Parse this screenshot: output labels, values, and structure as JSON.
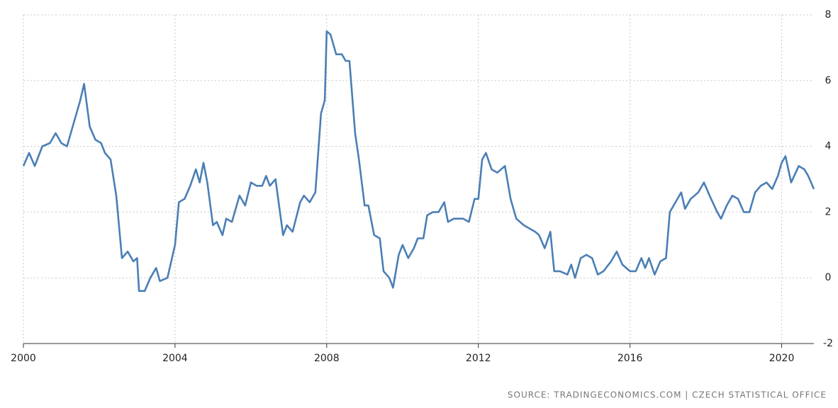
{
  "chart_data": {
    "type": "line",
    "source": "SOURCE: TRADINGECONOMICS.COM | CZECH STATISTICAL OFFICE",
    "x": [
      2000.0,
      2000.15,
      2000.3,
      2000.5,
      2000.7,
      2000.85,
      2001.0,
      2001.15,
      2001.3,
      2001.5,
      2001.6,
      2001.75,
      2001.9,
      2002.05,
      2002.15,
      2002.3,
      2002.45,
      2002.6,
      2002.75,
      2002.9,
      2003.0,
      2003.05,
      2003.2,
      2003.35,
      2003.5,
      2003.6,
      2003.8,
      2004.0,
      2004.1,
      2004.25,
      2004.4,
      2004.55,
      2004.65,
      2004.75,
      2004.85,
      2005.0,
      2005.1,
      2005.25,
      2005.35,
      2005.5,
      2005.7,
      2005.85,
      2006.0,
      2006.15,
      2006.3,
      2006.4,
      2006.5,
      2006.65,
      2006.85,
      2006.95,
      2007.1,
      2007.3,
      2007.4,
      2007.55,
      2007.7,
      2007.85,
      2007.95,
      2008.0,
      2008.1,
      2008.25,
      2008.4,
      2008.5,
      2008.6,
      2008.75,
      2008.85,
      2009.0,
      2009.1,
      2009.25,
      2009.4,
      2009.5,
      2009.65,
      2009.75,
      2009.9,
      2010.0,
      2010.15,
      2010.3,
      2010.4,
      2010.55,
      2010.65,
      2010.8,
      2010.95,
      2011.1,
      2011.2,
      2011.35,
      2011.5,
      2011.6,
      2011.75,
      2011.9,
      2012.0,
      2012.1,
      2012.2,
      2012.35,
      2012.5,
      2012.7,
      2012.85,
      2013.0,
      2013.2,
      2013.35,
      2013.5,
      2013.6,
      2013.75,
      2013.9,
      2014.0,
      2014.15,
      2014.35,
      2014.45,
      2014.55,
      2014.7,
      2014.85,
      2015.0,
      2015.15,
      2015.3,
      2015.5,
      2015.65,
      2015.8,
      2016.0,
      2016.15,
      2016.3,
      2016.4,
      2016.5,
      2016.65,
      2016.8,
      2016.95,
      2017.05,
      2017.2,
      2017.35,
      2017.45,
      2017.6,
      2017.8,
      2017.95,
      2018.1,
      2018.3,
      2018.4,
      2018.55,
      2018.7,
      2018.85,
      2019.0,
      2019.15,
      2019.3,
      2019.45,
      2019.6,
      2019.75,
      2019.9,
      2020.0,
      2020.1,
      2020.25,
      2020.45,
      2020.6,
      2020.7,
      2020.85
    ],
    "series": [
      {
        "color": "#4a7fb5",
        "values": [
          3.4,
          3.8,
          3.4,
          4.0,
          4.1,
          4.4,
          4.1,
          4.0,
          4.6,
          5.4,
          5.9,
          4.6,
          4.2,
          4.1,
          3.8,
          3.6,
          2.5,
          0.6,
          0.8,
          0.5,
          0.6,
          -0.4,
          -0.4,
          0.0,
          0.3,
          -0.1,
          0.0,
          1.0,
          2.3,
          2.4,
          2.8,
          3.3,
          2.9,
          3.5,
          2.9,
          1.6,
          1.7,
          1.3,
          1.8,
          1.7,
          2.5,
          2.2,
          2.9,
          2.8,
          2.8,
          3.1,
          2.8,
          3.0,
          1.3,
          1.6,
          1.4,
          2.3,
          2.5,
          2.3,
          2.6,
          5.0,
          5.4,
          7.5,
          7.4,
          6.8,
          6.8,
          6.6,
          6.6,
          4.4,
          3.6,
          2.2,
          2.2,
          1.3,
          1.2,
          0.2,
          0.0,
          -0.3,
          0.7,
          1.0,
          0.6,
          0.9,
          1.2,
          1.2,
          1.9,
          2.0,
          2.0,
          2.3,
          1.7,
          1.8,
          1.8,
          1.8,
          1.7,
          2.4,
          2.4,
          3.6,
          3.8,
          3.3,
          3.2,
          3.4,
          2.4,
          1.8,
          1.6,
          1.5,
          1.4,
          1.3,
          0.9,
          1.4,
          0.2,
          0.2,
          0.1,
          0.4,
          0.0,
          0.6,
          0.7,
          0.6,
          0.1,
          0.2,
          0.5,
          0.8,
          0.4,
          0.2,
          0.2,
          0.6,
          0.3,
          0.6,
          0.1,
          0.5,
          0.6,
          2.0,
          2.3,
          2.6,
          2.1,
          2.4,
          2.6,
          2.9,
          2.5,
          2.0,
          1.8,
          2.2,
          2.5,
          2.4,
          2.0,
          2.0,
          2.6,
          2.8,
          2.9,
          2.7,
          3.1,
          3.5,
          3.7,
          2.9,
          3.4,
          3.3,
          3.1,
          2.7
        ]
      }
    ],
    "xlim": [
      2000,
      2020.85
    ],
    "xticks": [
      2000,
      2004,
      2008,
      2012,
      2016,
      2020
    ],
    "ylim": [
      -2,
      8
    ],
    "yticks": [
      -2,
      0,
      2,
      4,
      6,
      8
    ],
    "grid": true
  }
}
